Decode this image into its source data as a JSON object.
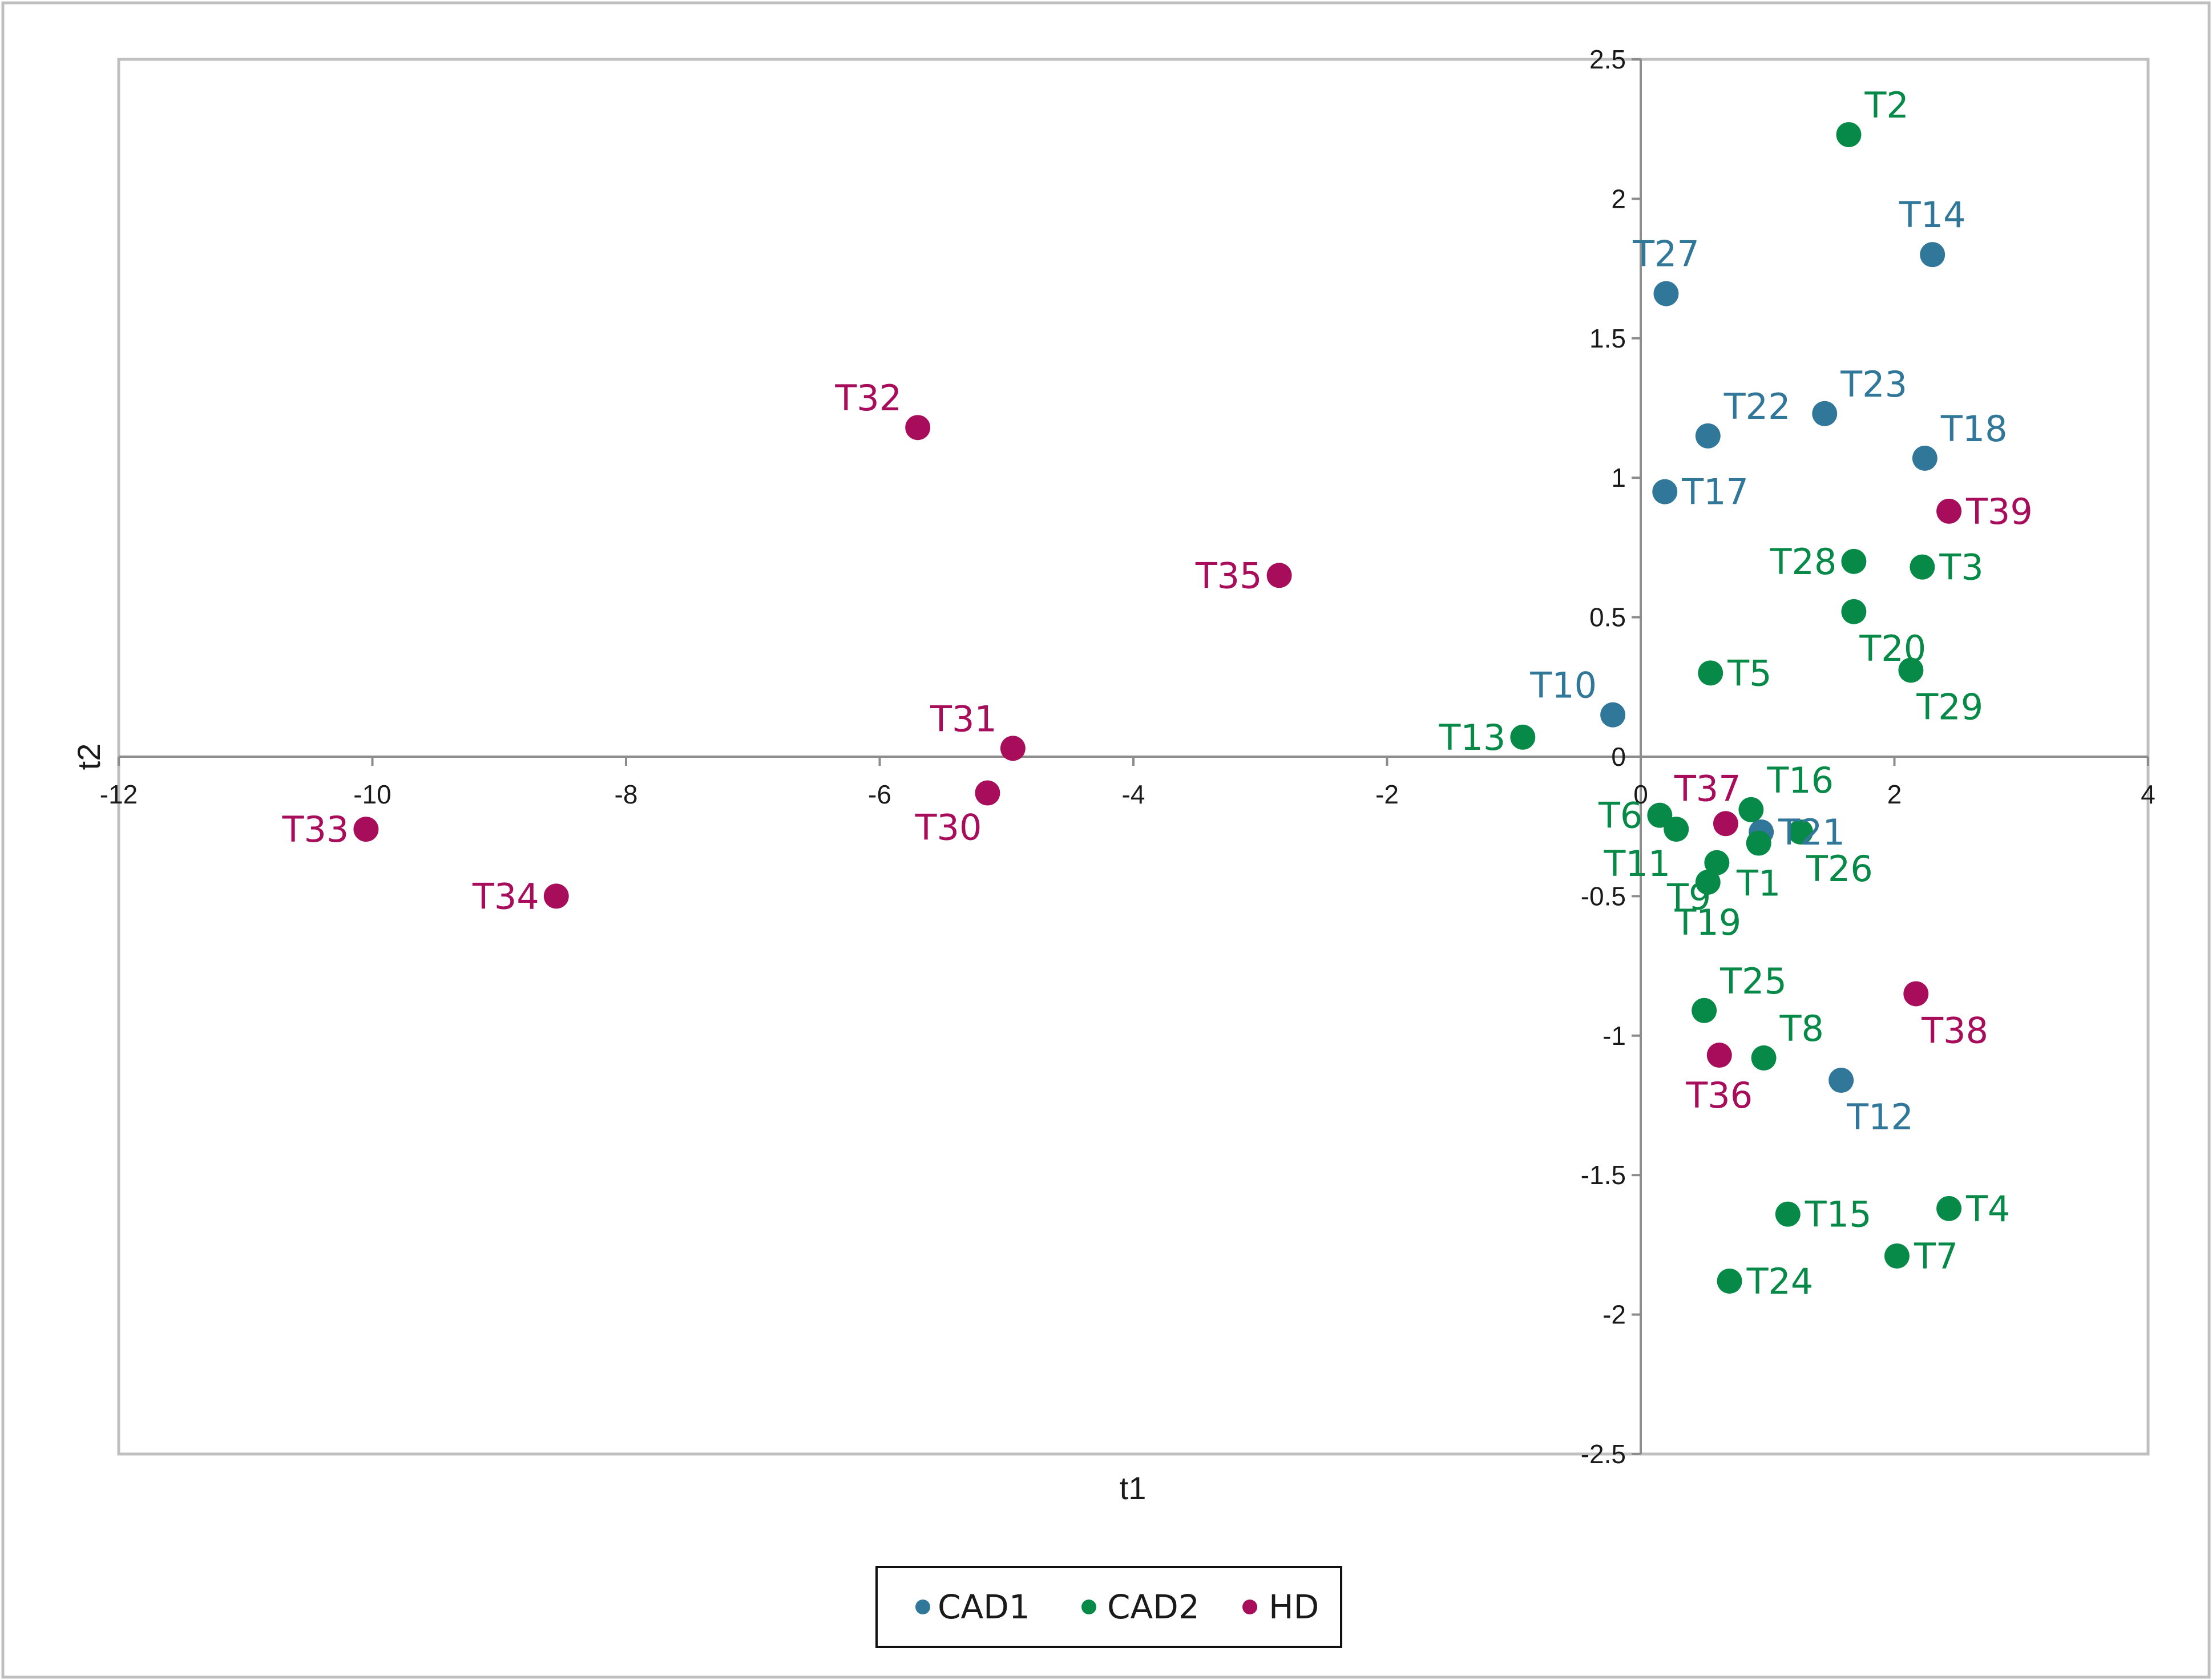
{
  "chart_data": {
    "type": "scatter",
    "title": "",
    "xlabel": "t1",
    "ylabel": "t2",
    "xlim": [
      -12,
      4
    ],
    "ylim": [
      -2.5,
      2.5
    ],
    "x_ticks": [
      "-12",
      "-10",
      "-8",
      "-6",
      "-4",
      "-2",
      "0",
      "2",
      "4"
    ],
    "y_ticks": [
      "2.5",
      "2",
      "1.5",
      "1",
      "0.5",
      "0",
      "-0.5",
      "-1",
      "-1.5",
      "-2",
      "-2.5"
    ],
    "x_tick_values": [
      -12,
      -10,
      -8,
      -6,
      -4,
      -2,
      0,
      2,
      4
    ],
    "y_tick_values": [
      2.5,
      2,
      1.5,
      1,
      0.5,
      0,
      -0.5,
      -1,
      -1.5,
      -2,
      -2.5
    ],
    "grid": false,
    "legend_position": "bottom-center",
    "colors": {
      "CAD1": "#31779a",
      "CAD2": "#078a47",
      "HD": "#a80d5b"
    },
    "series": [
      {
        "name": "CAD1",
        "color": "#31779a",
        "points": [
          {
            "label": "T14",
            "x": 2.3,
            "y": 1.8,
            "pos": "above"
          },
          {
            "label": "T27",
            "x": 0.2,
            "y": 1.66,
            "pos": "above"
          },
          {
            "label": "T23",
            "x": 1.45,
            "y": 1.23,
            "pos": "above-right"
          },
          {
            "label": "T22",
            "x": 0.53,
            "y": 1.15,
            "pos": "above-right"
          },
          {
            "label": "T18",
            "x": 2.24,
            "y": 1.07,
            "pos": "above-right"
          },
          {
            "label": "T17",
            "x": 0.19,
            "y": 0.95,
            "pos": "right"
          },
          {
            "label": "T10",
            "x": -0.22,
            "y": 0.15,
            "pos": "above-left"
          },
          {
            "label": "T21",
            "x": 0.95,
            "y": -0.27,
            "pos": "right"
          },
          {
            "label": "T12",
            "x": 1.58,
            "y": -1.16,
            "pos": "below-right"
          }
        ]
      },
      {
        "name": "CAD2",
        "color": "#078a47",
        "points": [
          {
            "label": "T2",
            "x": 1.64,
            "y": 2.23,
            "pos": "above-right"
          },
          {
            "label": "T28",
            "x": 1.68,
            "y": 0.7,
            "pos": "left"
          },
          {
            "label": "T3",
            "x": 2.22,
            "y": 0.68,
            "pos": "right"
          },
          {
            "label": "T20",
            "x": 1.68,
            "y": 0.52,
            "pos": "below-right"
          },
          {
            "label": "T5",
            "x": 0.55,
            "y": 0.3,
            "pos": "right"
          },
          {
            "label": "T29",
            "x": 2.13,
            "y": 0.31,
            "pos": "below-right"
          },
          {
            "label": "T13",
            "x": -0.93,
            "y": 0.07,
            "pos": "left"
          },
          {
            "label": "T6",
            "x": 0.15,
            "y": -0.21,
            "pos": "left"
          },
          {
            "label": "T16",
            "x": 0.87,
            "y": -0.19,
            "pos": "above-right"
          },
          {
            "label": "T11",
            "x": 0.28,
            "y": -0.26,
            "pos": "below-left"
          },
          {
            "label": "T26",
            "x": 1.26,
            "y": -0.27,
            "pos": "below-right"
          },
          {
            "label": "T1",
            "x": 0.93,
            "y": -0.31,
            "pos": "below"
          },
          {
            "label": "T9",
            "x": 0.6,
            "y": -0.38,
            "pos": "below-left"
          },
          {
            "label": "T19",
            "x": 0.53,
            "y": -0.45,
            "pos": "below"
          },
          {
            "label": "T25",
            "x": 0.5,
            "y": -0.91,
            "pos": "above-right"
          },
          {
            "label": "T8",
            "x": 0.97,
            "y": -1.08,
            "pos": "above-right"
          },
          {
            "label": "T15",
            "x": 1.16,
            "y": -1.64,
            "pos": "right"
          },
          {
            "label": "T4",
            "x": 2.43,
            "y": -1.62,
            "pos": "right"
          },
          {
            "label": "T7",
            "x": 2.02,
            "y": -1.79,
            "pos": "right"
          },
          {
            "label": "T24",
            "x": 0.7,
            "y": -1.88,
            "pos": "right"
          }
        ]
      },
      {
        "name": "HD",
        "color": "#a80d5b",
        "points": [
          {
            "label": "T32",
            "x": -5.7,
            "y": 1.18,
            "pos": "above-left"
          },
          {
            "label": "T35",
            "x": -2.85,
            "y": 0.65,
            "pos": "left"
          },
          {
            "label": "T31",
            "x": -4.95,
            "y": 0.03,
            "pos": "above-left"
          },
          {
            "label": "T30",
            "x": -5.15,
            "y": -0.13,
            "pos": "below-left"
          },
          {
            "label": "T33",
            "x": -10.05,
            "y": -0.26,
            "pos": "left"
          },
          {
            "label": "T34",
            "x": -8.55,
            "y": -0.5,
            "pos": "left"
          },
          {
            "label": "T39",
            "x": 2.43,
            "y": 0.88,
            "pos": "right"
          },
          {
            "label": "T37",
            "x": 0.67,
            "y": -0.24,
            "pos": "above-right-small"
          },
          {
            "label": "T38",
            "x": 2.17,
            "y": -0.85,
            "pos": "below-right"
          },
          {
            "label": "T36",
            "x": 0.62,
            "y": -1.07,
            "pos": "below"
          }
        ]
      }
    ]
  },
  "legend": {
    "items": [
      "CAD1",
      "CAD2",
      "HD"
    ]
  }
}
